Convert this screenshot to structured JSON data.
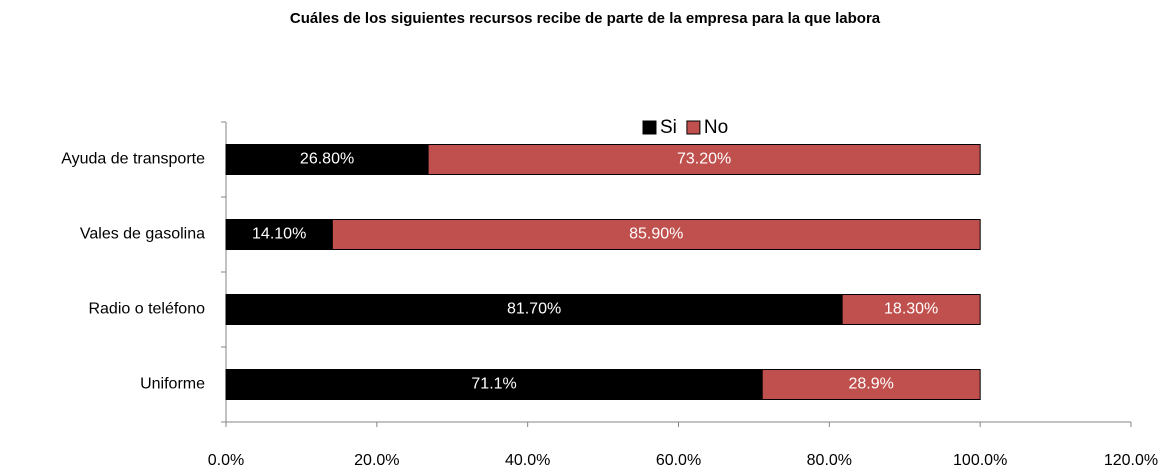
{
  "chart_data": {
    "type": "stacked_barh",
    "title": "Cuáles de los siguientes recursos recibe de parte de la empresa para la que labora",
    "categories": [
      "Ayuda de transporte",
      "Vales de gasolina",
      "Radio o teléfono",
      "Uniforme"
    ],
    "series": [
      {
        "name": "Si",
        "color": "#000000",
        "values": [
          26.8,
          14.1,
          81.7,
          71.1
        ],
        "value_labels": [
          "26.80%",
          "14.10%",
          "81.70%",
          "71.1%"
        ]
      },
      {
        "name": "No",
        "color": "#c0504d",
        "values": [
          73.2,
          85.9,
          18.3,
          28.9
        ],
        "value_labels": [
          "73.20%",
          "85.90%",
          "18.30%",
          "28.9%"
        ]
      }
    ],
    "xlim": [
      0,
      120
    ],
    "xticks": [
      {
        "value": 0,
        "label": "0.0%"
      },
      {
        "value": 20,
        "label": "20.0%"
      },
      {
        "value": 40,
        "label": "40.0%"
      },
      {
        "value": 60,
        "label": "60.0%"
      },
      {
        "value": 80,
        "label": "80.0%"
      },
      {
        "value": 100,
        "label": "100.0%"
      },
      {
        "value": 120,
        "label": "120.0%"
      }
    ],
    "legend": "top"
  }
}
